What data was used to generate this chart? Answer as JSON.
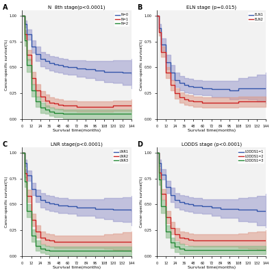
{
  "panels": [
    {
      "label": "A",
      "title": "N  8th stage(p<0.0001)",
      "xlabel": "Survival time(months)",
      "ylabel": "Cancer-specific survival(%)",
      "xticks": [
        0,
        12,
        24,
        36,
        48,
        60,
        72,
        84,
        96,
        108,
        120,
        132,
        144
      ],
      "yticks": [
        0.0,
        0.25,
        0.5,
        0.75,
        1.0
      ],
      "series": [
        {
          "label": "N=0",
          "color": "#3355aa",
          "ci_color": "#9999cc",
          "times": [
            0,
            3,
            6,
            12,
            18,
            24,
            30,
            36,
            42,
            48,
            54,
            60,
            72,
            84,
            96,
            108,
            120,
            132,
            144
          ],
          "surv": [
            1.0,
            0.92,
            0.82,
            0.7,
            0.63,
            0.58,
            0.56,
            0.54,
            0.53,
            0.52,
            0.51,
            0.5,
            0.49,
            0.48,
            0.47,
            0.46,
            0.46,
            0.45,
            0.44
          ],
          "upper": [
            1.0,
            0.95,
            0.87,
            0.76,
            0.7,
            0.65,
            0.63,
            0.61,
            0.6,
            0.59,
            0.58,
            0.57,
            0.57,
            0.56,
            0.56,
            0.56,
            0.57,
            0.57,
            0.58
          ],
          "lower": [
            1.0,
            0.89,
            0.77,
            0.64,
            0.56,
            0.51,
            0.49,
            0.47,
            0.46,
            0.45,
            0.44,
            0.43,
            0.41,
            0.4,
            0.38,
            0.36,
            0.35,
            0.33,
            0.3
          ]
        },
        {
          "label": "N=1",
          "color": "#cc2222",
          "ci_color": "#dd9988",
          "times": [
            0,
            3,
            6,
            12,
            18,
            24,
            30,
            36,
            42,
            48,
            54,
            60,
            72,
            84,
            96,
            108,
            120,
            132,
            144
          ],
          "surv": [
            1.0,
            0.82,
            0.62,
            0.4,
            0.28,
            0.22,
            0.18,
            0.16,
            0.15,
            0.14,
            0.13,
            0.13,
            0.12,
            0.12,
            0.12,
            0.12,
            0.13,
            0.13,
            0.13
          ],
          "upper": [
            1.0,
            0.86,
            0.67,
            0.46,
            0.34,
            0.27,
            0.24,
            0.21,
            0.2,
            0.19,
            0.18,
            0.18,
            0.17,
            0.17,
            0.17,
            0.17,
            0.18,
            0.18,
            0.19
          ],
          "lower": [
            1.0,
            0.78,
            0.57,
            0.34,
            0.22,
            0.17,
            0.12,
            0.11,
            0.1,
            0.09,
            0.08,
            0.08,
            0.07,
            0.07,
            0.07,
            0.07,
            0.08,
            0.08,
            0.07
          ]
        },
        {
          "label": "N=2",
          "color": "#228833",
          "ci_color": "#88bb88",
          "times": [
            0,
            3,
            6,
            12,
            18,
            24,
            30,
            36,
            42,
            48,
            54,
            60,
            72,
            84,
            96,
            108,
            120,
            132,
            144
          ],
          "surv": [
            1.0,
            0.76,
            0.52,
            0.28,
            0.17,
            0.11,
            0.09,
            0.07,
            0.06,
            0.06,
            0.05,
            0.05,
            0.05,
            0.05,
            0.05,
            0.05,
            0.05,
            0.05,
            0.05
          ],
          "upper": [
            1.0,
            0.81,
            0.58,
            0.34,
            0.22,
            0.16,
            0.13,
            0.11,
            0.1,
            0.1,
            0.09,
            0.09,
            0.09,
            0.09,
            0.09,
            0.09,
            0.09,
            0.09,
            0.09
          ],
          "lower": [
            1.0,
            0.71,
            0.46,
            0.22,
            0.12,
            0.06,
            0.05,
            0.03,
            0.02,
            0.02,
            0.01,
            0.01,
            0.01,
            0.01,
            0.01,
            0.01,
            0.01,
            0.01,
            0.01
          ]
        }
      ]
    },
    {
      "label": "B",
      "title": "ELN stage (p=0.015)",
      "xlabel": "Survival time(months)",
      "ylabel": "Cancer-specific survival(%)",
      "xticks": [
        0,
        12,
        24,
        36,
        48,
        60,
        72,
        84,
        96,
        108,
        120,
        132,
        144
      ],
      "yticks": [
        0.0,
        0.25,
        0.5,
        0.75,
        1.0
      ],
      "series": [
        {
          "label": "ELN1",
          "color": "#3355aa",
          "ci_color": "#9999cc",
          "times": [
            0,
            3,
            6,
            12,
            18,
            24,
            30,
            36,
            42,
            48,
            60,
            72,
            84,
            96,
            108,
            120,
            132,
            144
          ],
          "surv": [
            1.0,
            0.88,
            0.72,
            0.55,
            0.45,
            0.38,
            0.35,
            0.33,
            0.32,
            0.31,
            0.3,
            0.29,
            0.29,
            0.28,
            0.3,
            0.3,
            0.3,
            0.3
          ],
          "upper": [
            1.0,
            0.92,
            0.78,
            0.62,
            0.52,
            0.45,
            0.42,
            0.4,
            0.39,
            0.38,
            0.37,
            0.37,
            0.37,
            0.37,
            0.4,
            0.41,
            0.43,
            0.45
          ],
          "lower": [
            1.0,
            0.84,
            0.66,
            0.48,
            0.38,
            0.31,
            0.28,
            0.26,
            0.25,
            0.24,
            0.23,
            0.21,
            0.21,
            0.19,
            0.2,
            0.19,
            0.17,
            0.15
          ]
        },
        {
          "label": "ELN2",
          "color": "#cc2222",
          "ci_color": "#dd9988",
          "times": [
            0,
            3,
            6,
            12,
            18,
            24,
            30,
            36,
            42,
            48,
            60,
            72,
            84,
            96,
            108,
            120,
            132,
            144
          ],
          "surv": [
            1.0,
            0.84,
            0.65,
            0.45,
            0.33,
            0.25,
            0.21,
            0.19,
            0.18,
            0.17,
            0.16,
            0.16,
            0.16,
            0.16,
            0.17,
            0.17,
            0.17,
            0.17
          ],
          "upper": [
            1.0,
            0.87,
            0.7,
            0.5,
            0.38,
            0.3,
            0.26,
            0.24,
            0.23,
            0.22,
            0.21,
            0.21,
            0.21,
            0.21,
            0.22,
            0.22,
            0.22,
            0.22
          ],
          "lower": [
            1.0,
            0.81,
            0.6,
            0.4,
            0.28,
            0.2,
            0.16,
            0.14,
            0.13,
            0.12,
            0.11,
            0.11,
            0.11,
            0.11,
            0.12,
            0.12,
            0.12,
            0.12
          ]
        }
      ]
    },
    {
      "label": "C",
      "title": "LNR stage(p<0.0001)",
      "xlabel": "Survival time(months)",
      "ylabel": "Cancer-specific survival(%)",
      "xticks": [
        0,
        12,
        24,
        36,
        48,
        60,
        72,
        84,
        96,
        108,
        120,
        132,
        144
      ],
      "yticks": [
        0.0,
        0.25,
        0.5,
        0.75,
        1.0
      ],
      "series": [
        {
          "label": "LNR1",
          "color": "#3355aa",
          "ci_color": "#9999cc",
          "times": [
            0,
            3,
            6,
            12,
            18,
            24,
            30,
            36,
            42,
            48,
            60,
            72,
            84,
            96,
            108,
            120,
            132,
            144
          ],
          "surv": [
            1.0,
            0.9,
            0.78,
            0.65,
            0.58,
            0.54,
            0.52,
            0.51,
            0.5,
            0.49,
            0.48,
            0.47,
            0.47,
            0.46,
            0.46,
            0.45,
            0.45,
            0.44
          ],
          "upper": [
            1.0,
            0.93,
            0.83,
            0.71,
            0.64,
            0.61,
            0.59,
            0.58,
            0.57,
            0.56,
            0.55,
            0.55,
            0.55,
            0.55,
            0.56,
            0.56,
            0.57,
            0.58
          ],
          "lower": [
            1.0,
            0.87,
            0.73,
            0.59,
            0.52,
            0.47,
            0.45,
            0.44,
            0.43,
            0.42,
            0.41,
            0.39,
            0.39,
            0.37,
            0.36,
            0.34,
            0.33,
            0.3
          ]
        },
        {
          "label": "LNR2",
          "color": "#cc2222",
          "ci_color": "#dd9988",
          "times": [
            0,
            3,
            6,
            12,
            18,
            24,
            30,
            36,
            42,
            48,
            60,
            72,
            84,
            96,
            108,
            120,
            132,
            144
          ],
          "surv": [
            1.0,
            0.8,
            0.58,
            0.35,
            0.24,
            0.18,
            0.16,
            0.15,
            0.14,
            0.14,
            0.14,
            0.14,
            0.14,
            0.14,
            0.14,
            0.14,
            0.14,
            0.14
          ],
          "upper": [
            1.0,
            0.84,
            0.64,
            0.41,
            0.3,
            0.24,
            0.22,
            0.21,
            0.2,
            0.2,
            0.2,
            0.2,
            0.2,
            0.2,
            0.21,
            0.22,
            0.23,
            0.24
          ],
          "lower": [
            1.0,
            0.76,
            0.52,
            0.29,
            0.18,
            0.12,
            0.1,
            0.09,
            0.08,
            0.08,
            0.08,
            0.08,
            0.08,
            0.08,
            0.07,
            0.06,
            0.05,
            0.04
          ]
        },
        {
          "label": "LNR3",
          "color": "#228833",
          "ci_color": "#88bb88",
          "times": [
            0,
            3,
            6,
            12,
            18,
            24,
            30,
            36,
            42,
            48,
            60,
            72,
            84,
            96,
            108,
            120,
            132,
            144
          ],
          "surv": [
            1.0,
            0.72,
            0.44,
            0.2,
            0.1,
            0.07,
            0.06,
            0.05,
            0.05,
            0.05,
            0.05,
            0.05,
            0.05,
            0.05,
            0.05,
            0.05,
            0.05,
            0.05
          ],
          "upper": [
            1.0,
            0.77,
            0.5,
            0.26,
            0.15,
            0.11,
            0.1,
            0.09,
            0.09,
            0.09,
            0.09,
            0.09,
            0.09,
            0.09,
            0.09,
            0.09,
            0.09,
            0.09
          ],
          "lower": [
            1.0,
            0.67,
            0.38,
            0.14,
            0.05,
            0.03,
            0.02,
            0.01,
            0.01,
            0.01,
            0.01,
            0.01,
            0.01,
            0.01,
            0.01,
            0.01,
            0.01,
            0.01
          ]
        }
      ]
    },
    {
      "label": "D",
      "title": "LODDS stage (p<0.0001)",
      "xlabel": "Survival time(months)",
      "ylabel": "Cancer-specific survival(%)",
      "xticks": [
        0,
        12,
        24,
        36,
        48,
        60,
        72,
        84,
        96,
        108,
        120,
        132,
        144
      ],
      "yticks": [
        0.0,
        0.25,
        0.5,
        0.75,
        1.0
      ],
      "series": [
        {
          "label": "LODDS1=1",
          "color": "#3355aa",
          "ci_color": "#9999cc",
          "times": [
            0,
            3,
            6,
            12,
            18,
            24,
            30,
            36,
            42,
            48,
            60,
            72,
            84,
            96,
            108,
            120,
            132,
            144
          ],
          "surv": [
            1.0,
            0.9,
            0.79,
            0.67,
            0.59,
            0.54,
            0.52,
            0.51,
            0.5,
            0.49,
            0.48,
            0.47,
            0.46,
            0.46,
            0.45,
            0.45,
            0.44,
            0.44
          ],
          "upper": [
            1.0,
            0.93,
            0.84,
            0.73,
            0.66,
            0.61,
            0.59,
            0.58,
            0.57,
            0.56,
            0.55,
            0.55,
            0.55,
            0.55,
            0.56,
            0.57,
            0.58,
            0.6
          ],
          "lower": [
            1.0,
            0.87,
            0.74,
            0.61,
            0.52,
            0.47,
            0.45,
            0.44,
            0.43,
            0.42,
            0.41,
            0.39,
            0.37,
            0.37,
            0.34,
            0.33,
            0.3,
            0.28
          ]
        },
        {
          "label": "LODDS1=2",
          "color": "#cc2222",
          "ci_color": "#dd9988",
          "times": [
            0,
            3,
            6,
            12,
            18,
            24,
            30,
            36,
            42,
            48,
            60,
            72,
            84,
            96,
            108,
            120,
            132,
            144
          ],
          "surv": [
            1.0,
            0.81,
            0.6,
            0.38,
            0.27,
            0.21,
            0.18,
            0.17,
            0.16,
            0.15,
            0.15,
            0.15,
            0.15,
            0.15,
            0.15,
            0.15,
            0.15,
            0.15
          ],
          "upper": [
            1.0,
            0.85,
            0.65,
            0.44,
            0.33,
            0.27,
            0.24,
            0.23,
            0.22,
            0.21,
            0.21,
            0.21,
            0.21,
            0.21,
            0.22,
            0.23,
            0.24,
            0.25
          ],
          "lower": [
            1.0,
            0.77,
            0.55,
            0.32,
            0.21,
            0.15,
            0.12,
            0.11,
            0.1,
            0.09,
            0.09,
            0.09,
            0.09,
            0.09,
            0.08,
            0.07,
            0.06,
            0.05
          ]
        },
        {
          "label": "LODDS1=3",
          "color": "#228833",
          "ci_color": "#88bb88",
          "times": [
            0,
            3,
            6,
            12,
            18,
            24,
            30,
            36,
            42,
            48,
            60,
            72,
            84,
            96,
            108,
            120,
            132,
            144
          ],
          "surv": [
            1.0,
            0.74,
            0.48,
            0.24,
            0.13,
            0.09,
            0.07,
            0.06,
            0.06,
            0.06,
            0.06,
            0.06,
            0.06,
            0.06,
            0.06,
            0.06,
            0.06,
            0.06
          ],
          "upper": [
            1.0,
            0.79,
            0.54,
            0.3,
            0.18,
            0.14,
            0.12,
            0.1,
            0.1,
            0.1,
            0.1,
            0.1,
            0.1,
            0.1,
            0.1,
            0.1,
            0.1,
            0.1
          ],
          "lower": [
            1.0,
            0.69,
            0.42,
            0.18,
            0.08,
            0.04,
            0.02,
            0.02,
            0.02,
            0.02,
            0.02,
            0.02,
            0.02,
            0.02,
            0.02,
            0.02,
            0.02,
            0.02
          ]
        }
      ]
    }
  ],
  "bg_color": "#ffffff",
  "fig_bg_color": "#ffffff",
  "panel_bg_color": "#f2f2f2"
}
